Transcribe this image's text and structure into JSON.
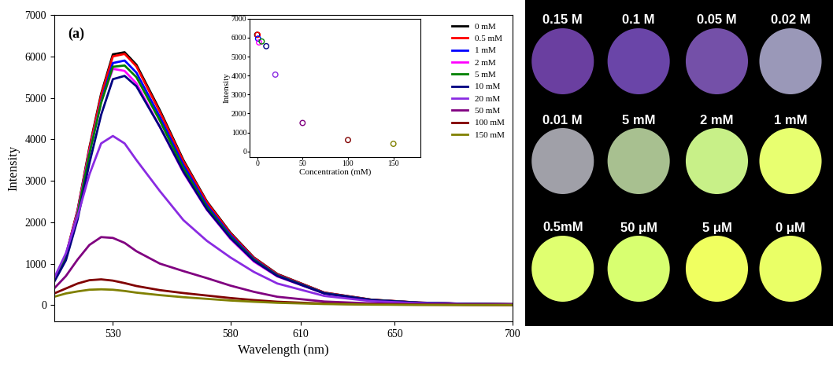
{
  "chart_data": [
    {
      "type": "line",
      "annotations": [
        "(a)"
      ],
      "xlabel": "Wavelength (nm)",
      "ylabel": "Intensity",
      "x": [
        505,
        510,
        515,
        520,
        525,
        530,
        535,
        540,
        550,
        560,
        570,
        580,
        590,
        600,
        620,
        640,
        660,
        680,
        700
      ],
      "xlim": [
        505,
        700
      ],
      "xticks": [
        530,
        580,
        610,
        650,
        700
      ],
      "ylim": [
        -400,
        7000
      ],
      "yticks": [
        0,
        1000,
        2000,
        3000,
        4000,
        5000,
        6000,
        7000
      ],
      "legend": "upper right",
      "series": [
        {
          "name": "0 mM",
          "color": "#000000",
          "values": [
            600,
            1200,
            2300,
            3800,
            5100,
            6050,
            6100,
            5800,
            4700,
            3500,
            2500,
            1750,
            1150,
            750,
            300,
            130,
            60,
            30,
            20
          ]
        },
        {
          "name": "0.5 mM",
          "color": "#ff0000",
          "values": [
            600,
            1190,
            2280,
            3770,
            5060,
            6000,
            6060,
            5760,
            4660,
            3470,
            2480,
            1730,
            1140,
            740,
            300,
            130,
            60,
            30,
            20
          ]
        },
        {
          "name": "1 mM",
          "color": "#0000ff",
          "values": [
            600,
            1160,
            2220,
            3670,
            4920,
            5840,
            5900,
            5610,
            4540,
            3380,
            2410,
            1690,
            1110,
            720,
            290,
            125,
            58,
            29,
            19
          ]
        },
        {
          "name": "2 mM",
          "color": "#ff00ff",
          "values": [
            620,
            1180,
            2250,
            3700,
            4900,
            5700,
            5650,
            5350,
            4300,
            3200,
            2300,
            1600,
            1050,
            690,
            280,
            120,
            55,
            28,
            18
          ]
        },
        {
          "name": "5 mM",
          "color": "#008000",
          "values": [
            600,
            1150,
            2200,
            3650,
            4880,
            5750,
            5780,
            5500,
            4450,
            3300,
            2360,
            1650,
            1090,
            710,
            285,
            123,
            57,
            28,
            19
          ]
        },
        {
          "name": "10 mM",
          "color": "#000080",
          "values": [
            560,
            1080,
            2070,
            3420,
            4590,
            5450,
            5530,
            5280,
            4300,
            3220,
            2310,
            1620,
            1070,
            700,
            280,
            120,
            56,
            28,
            18
          ]
        },
        {
          "name": "20 mM",
          "color": "#8a2be2",
          "values": [
            650,
            1250,
            2150,
            3150,
            3900,
            4080,
            3900,
            3500,
            2750,
            2050,
            1550,
            1150,
            800,
            520,
            220,
            95,
            45,
            22,
            15
          ]
        },
        {
          "name": "50 mM",
          "color": "#800080",
          "values": [
            400,
            700,
            1100,
            1450,
            1640,
            1620,
            1500,
            1300,
            1000,
            820,
            650,
            470,
            320,
            200,
            85,
            40,
            20,
            10,
            5
          ]
        },
        {
          "name": "100 mM",
          "color": "#800000",
          "values": [
            280,
            400,
            520,
            600,
            620,
            590,
            530,
            460,
            360,
            290,
            230,
            170,
            120,
            80,
            35,
            15,
            8,
            4,
            2
          ]
        },
        {
          "name": "150 mM",
          "color": "#808000",
          "values": [
            200,
            280,
            330,
            370,
            380,
            370,
            340,
            300,
            240,
            190,
            150,
            110,
            80,
            55,
            25,
            10,
            5,
            3,
            2
          ]
        }
      ]
    },
    {
      "type": "scatter",
      "xlabel": "Concentration (mM)",
      "ylabel": "Intensity",
      "x": [
        0,
        0.5,
        1,
        2,
        5,
        10,
        20,
        50,
        100,
        150
      ],
      "values": [
        6150,
        6150,
        5950,
        5750,
        5800,
        5550,
        4050,
        1500,
        600,
        400
      ],
      "colors": [
        "#000000",
        "#ff0000",
        "#0000ff",
        "#ff00ff",
        "#008000",
        "#000080",
        "#8a2be2",
        "#800080",
        "#800000",
        "#808000"
      ],
      "marker": "circle",
      "xlim": [
        -8,
        180
      ],
      "xticks": [
        0,
        50,
        100,
        150
      ],
      "ylim": [
        -300,
        7000
      ],
      "yticks": [
        0,
        1000,
        2000,
        3000,
        4000,
        5000,
        6000,
        7000
      ]
    }
  ],
  "photo": {
    "spots": [
      [
        {
          "label": "0.15 M",
          "color": "#6a3fa0"
        },
        {
          "label": "0.1 M",
          "color": "#6a45a8"
        },
        {
          "label": "0.05 M",
          "color": "#7450a8"
        },
        {
          "label": "0.02 M",
          "color": "#9a98b8"
        }
      ],
      [
        {
          "label": "0.01 M",
          "color": "#a0a0a8"
        },
        {
          "label": "5 mM",
          "color": "#a8c090"
        },
        {
          "label": "2 mM",
          "color": "#c8f088"
        },
        {
          "label": "1 mM",
          "color": "#e8ff70"
        }
      ],
      [
        {
          "label": "0.5mM",
          "color": "#e0ff70"
        },
        {
          "label": "50 μM",
          "color": "#d8ff70"
        },
        {
          "label": "5 μM",
          "color": "#f0ff60"
        },
        {
          "label": "0 μM",
          "color": "#eaff66"
        }
      ]
    ]
  }
}
